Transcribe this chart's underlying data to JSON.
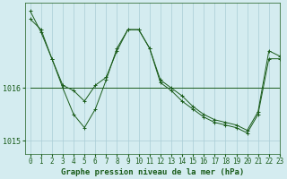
{
  "title": "Graphe pression niveau de la mer (hPa)",
  "background_color": "#d4ecf0",
  "plot_bg_color": "#d4ecf0",
  "grid_color": "#aacdd6",
  "line_color": "#1a5c1a",
  "xlim": [
    -0.5,
    23
  ],
  "ylim": [
    1014.75,
    1017.6
  ],
  "yticks": [
    1015,
    1016
  ],
  "xticks": [
    0,
    1,
    2,
    3,
    4,
    5,
    6,
    7,
    8,
    9,
    10,
    11,
    12,
    13,
    14,
    15,
    16,
    17,
    18,
    19,
    20,
    21,
    22,
    23
  ],
  "series": [
    [
      1017.45,
      1017.05,
      1016.55,
      1016.05,
      1015.95,
      1015.75,
      1016.05,
      1016.2,
      1016.7,
      1017.1,
      1017.1,
      1016.75,
      1016.15,
      1016.0,
      1015.85,
      1015.65,
      1015.5,
      1015.4,
      1015.35,
      1015.3,
      1015.2,
      1015.55,
      1016.7,
      1016.6
    ],
    [
      1017.3,
      1017.1,
      1016.55,
      1016.0,
      1015.5,
      1015.25,
      1015.6,
      1016.15,
      1016.75,
      1017.1,
      1017.1,
      1016.75,
      1016.1,
      1015.95,
      1015.75,
      1015.6,
      1015.45,
      1015.35,
      1015.3,
      1015.25,
      1015.15,
      1015.5,
      1016.55,
      1016.55
    ],
    [
      1016.0,
      1016.0,
      1016.0,
      1016.0,
      1016.0,
      1016.0,
      1016.0,
      1016.0,
      1016.0,
      1016.0,
      1016.0,
      1016.0,
      1016.0,
      1016.0,
      1016.0,
      1016.0,
      1016.0,
      1016.0,
      1016.0,
      1016.0,
      1016.0,
      1016.0,
      1016.0,
      1016.0
    ]
  ],
  "label_fontsize": 6.5,
  "tick_fontsize": 5.5
}
